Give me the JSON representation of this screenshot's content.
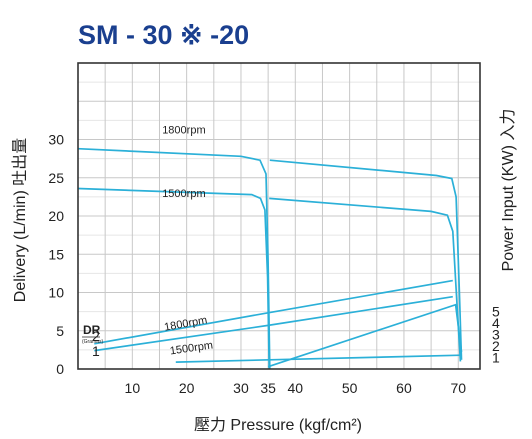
{
  "chart_data": {
    "type": "line",
    "title": "SM - 30 ※ -20",
    "xlabel": "壓力 Pressure (kgf/cm²)",
    "ylabel_left": "Delivery (L/min) 吐出量",
    "ylabel_right": "Power Input (KW) 入力",
    "x_ticks": [
      10,
      20,
      30,
      35,
      40,
      50,
      60,
      70
    ],
    "y_ticks_left": [
      0,
      5,
      10,
      15,
      20,
      25,
      30
    ],
    "y_ticks_right": [
      1,
      2,
      3,
      4,
      5
    ],
    "y_right_labels_at_left_units": [
      1.5,
      3,
      4.5,
      6,
      7.5
    ],
    "xlim": [
      0,
      74
    ],
    "ylim": [
      0,
      40
    ],
    "grid": true,
    "dr_label": "DR",
    "dr_sublabel": "(Gramas)",
    "dr_values": [
      "2",
      "1"
    ],
    "series": [
      {
        "name": "1800rpm",
        "axis": "delivery",
        "x": [
          0,
          30,
          33.5,
          34.6,
          35.0,
          35.3
        ],
        "y": [
          28.8,
          27.8,
          27.3,
          25.5,
          14,
          0
        ]
      },
      {
        "name": "1500rpm",
        "axis": "delivery",
        "x": [
          0,
          32,
          33.6,
          34.4,
          34.9,
          35.2
        ],
        "y": [
          23.6,
          22.8,
          22.3,
          20.8,
          12,
          0
        ]
      },
      {
        "axis": "delivery",
        "x": [
          35.3,
          66,
          68.8,
          69.6,
          70.2,
          70.6
        ],
        "y": [
          27.3,
          25.3,
          24.9,
          22.5,
          10,
          1.2
        ]
      },
      {
        "axis": "delivery",
        "x": [
          35.2,
          65,
          68.0,
          69.0,
          69.8,
          70.4
        ],
        "y": [
          22.3,
          20.6,
          20.1,
          18.0,
          8,
          1.0
        ]
      },
      {
        "name": "1800rpm",
        "axis": "power",
        "x": [
          3,
          35,
          69
        ],
        "y": [
          2.2,
          4.9,
          7.7
        ]
      },
      {
        "name": "1500rpm",
        "axis": "power",
        "x": [
          3,
          35,
          69
        ],
        "y": [
          1.6,
          3.8,
          6.3
        ]
      },
      {
        "axis": "power",
        "x": [
          35,
          69.5,
          70.6
        ],
        "y": [
          0.2,
          5.6,
          1.5
        ]
      },
      {
        "axis": "power",
        "x": [
          18,
          70.6
        ],
        "y": [
          0.6,
          1.2
        ]
      }
    ],
    "annotations": [
      {
        "text": "1800rpm",
        "x": 15.5,
        "y": 30.8
      },
      {
        "text": "1500rpm",
        "x": 15.5,
        "y": 22.5
      },
      {
        "text": "1800rpm",
        "x": 16,
        "y": 5.0,
        "rotate": -10
      },
      {
        "text": "1500rpm",
        "x": 17,
        "y": 1.9,
        "rotate": -8
      }
    ]
  }
}
